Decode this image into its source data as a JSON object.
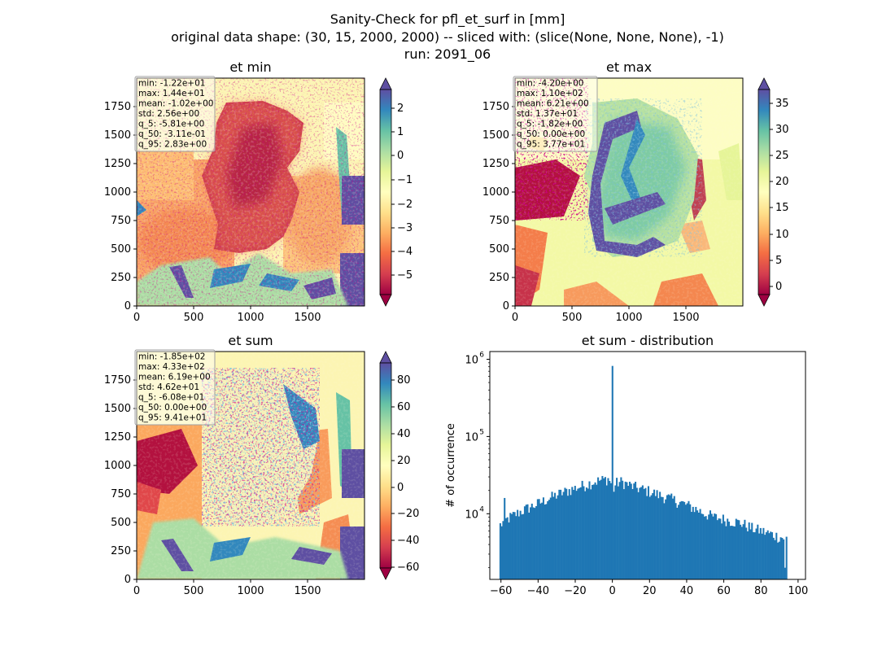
{
  "figure": {
    "suptitle_lines": [
      "Sanity-Check for pfl_et_surf in [mm]",
      "original data shape: (30, 15, 2000, 2000) -- sliced with: (slice(None, None, None), -1)",
      "run: 2091_06"
    ]
  },
  "colormap": {
    "name": "Spectral",
    "stops": [
      "#9e0142",
      "#d53e4f",
      "#f46d43",
      "#fdae61",
      "#fee08b",
      "#ffffbf",
      "#e6f598",
      "#abdda4",
      "#66c2a5",
      "#3288bd",
      "#5e4fa2"
    ]
  },
  "chart_data": [
    {
      "type": "heatmap",
      "title": "et min",
      "x_ticks": [
        0,
        500,
        1000,
        1500
      ],
      "y_ticks": [
        0,
        250,
        500,
        750,
        1000,
        1250,
        1500,
        1750
      ],
      "xlim": [
        0,
        2000
      ],
      "ylim": [
        0,
        2000
      ],
      "colorbar": {
        "min": -5.81,
        "max": 2.83,
        "ticks": [
          2,
          1,
          0,
          -1,
          -2,
          -3,
          -4,
          -5
        ],
        "tick_labels": [
          "2",
          "1",
          "0",
          "−1",
          "−2",
          "−3",
          "−4",
          "−5"
        ],
        "extend": "both"
      },
      "stats": [
        "min: -1.22e+01",
        "max: 1.44e+01",
        "mean: -1.02e+00",
        "std: 2.56e+00",
        "q_5: -5.81e+00",
        "q_50: -3.11e-01",
        "q_95: 2.83e+00"
      ]
    },
    {
      "type": "heatmap",
      "title": "et max",
      "x_ticks": [
        0,
        500,
        1000,
        1500
      ],
      "y_ticks": [
        0,
        250,
        500,
        750,
        1000,
        1250,
        1500,
        1750
      ],
      "xlim": [
        0,
        2000
      ],
      "ylim": [
        0,
        2000
      ],
      "colorbar": {
        "min": -1.82,
        "max": 37.7,
        "ticks": [
          35,
          30,
          25,
          20,
          15,
          10,
          5,
          0
        ],
        "tick_labels": [
          "35",
          "30",
          "25",
          "20",
          "15",
          "10",
          "5",
          "0"
        ],
        "extend": "both"
      },
      "stats": [
        "min: -4.20e+00",
        "max: 1.10e+02",
        "mean: 6.21e+00",
        "std: 1.37e+01",
        "q_5: -1.82e+00",
        "q_50: 0.00e+00",
        "q_95: 3.77e+01"
      ]
    },
    {
      "type": "heatmap",
      "title": "et sum",
      "x_ticks": [
        0,
        500,
        1000,
        1500
      ],
      "y_ticks": [
        0,
        250,
        500,
        750,
        1000,
        1250,
        1500,
        1750
      ],
      "xlim": [
        0,
        2000
      ],
      "ylim": [
        0,
        2000
      ],
      "colorbar": {
        "min": -60.8,
        "max": 94.1,
        "ticks": [
          80,
          60,
          40,
          20,
          0,
          -20,
          -40,
          -60
        ],
        "tick_labels": [
          "80",
          "60",
          "40",
          "20",
          "0",
          "−20",
          "−40",
          "−60"
        ],
        "extend": "both"
      },
      "stats": [
        "min: -1.85e+02",
        "max: 4.33e+02",
        "mean: 6.19e+00",
        "std: 4.62e+01",
        "q_5: -6.08e+01",
        "q_50: 0.00e+00",
        "q_95: 9.41e+01"
      ]
    },
    {
      "type": "bar",
      "title": "et sum - distribution",
      "ylabel": "# of occurrence",
      "xlabel": "",
      "yscale": "log",
      "xlim": [
        -66,
        104
      ],
      "ylim_log10": [
        3.15,
        6.1
      ],
      "x_ticks": [
        -60,
        -40,
        -20,
        0,
        20,
        40,
        60,
        80,
        100
      ],
      "x_tick_labels": [
        "−60",
        "−40",
        "−20",
        "0",
        "20",
        "40",
        "60",
        "80",
        "100"
      ],
      "y_ticks": [
        4,
        5,
        6
      ],
      "y_tick_labels": [
        "10",
        "10",
        "10"
      ],
      "y_tick_exponents": [
        "4",
        "5",
        "6"
      ],
      "bar_color": "#1f77b4",
      "bins": {
        "start": -60.8,
        "end": 94.1,
        "count": 200
      },
      "profile": {
        "x": [
          -60.8,
          -58,
          -55,
          -50,
          -45,
          -40,
          -35,
          -30,
          -25,
          -20,
          -15,
          -10,
          -5,
          -2,
          -0.5,
          0.5,
          2,
          5,
          10,
          15,
          20,
          25,
          30,
          35,
          40,
          45,
          50,
          55,
          60,
          65,
          70,
          75,
          80,
          85,
          90,
          94.1
        ],
        "y": [
          7000,
          8000,
          9000,
          10500,
          12000,
          13500,
          15500,
          17500,
          19500,
          21500,
          23500,
          26000,
          27500,
          28500,
          24000,
          20000,
          25000,
          26000,
          23000,
          21000,
          19500,
          17500,
          16000,
          14500,
          13000,
          11500,
          10000,
          9000,
          8500,
          8000,
          7500,
          6500,
          6000,
          5500,
          5000,
          4800
        ]
      },
      "spike": {
        "x": 0,
        "value": 820000
      }
    }
  ]
}
